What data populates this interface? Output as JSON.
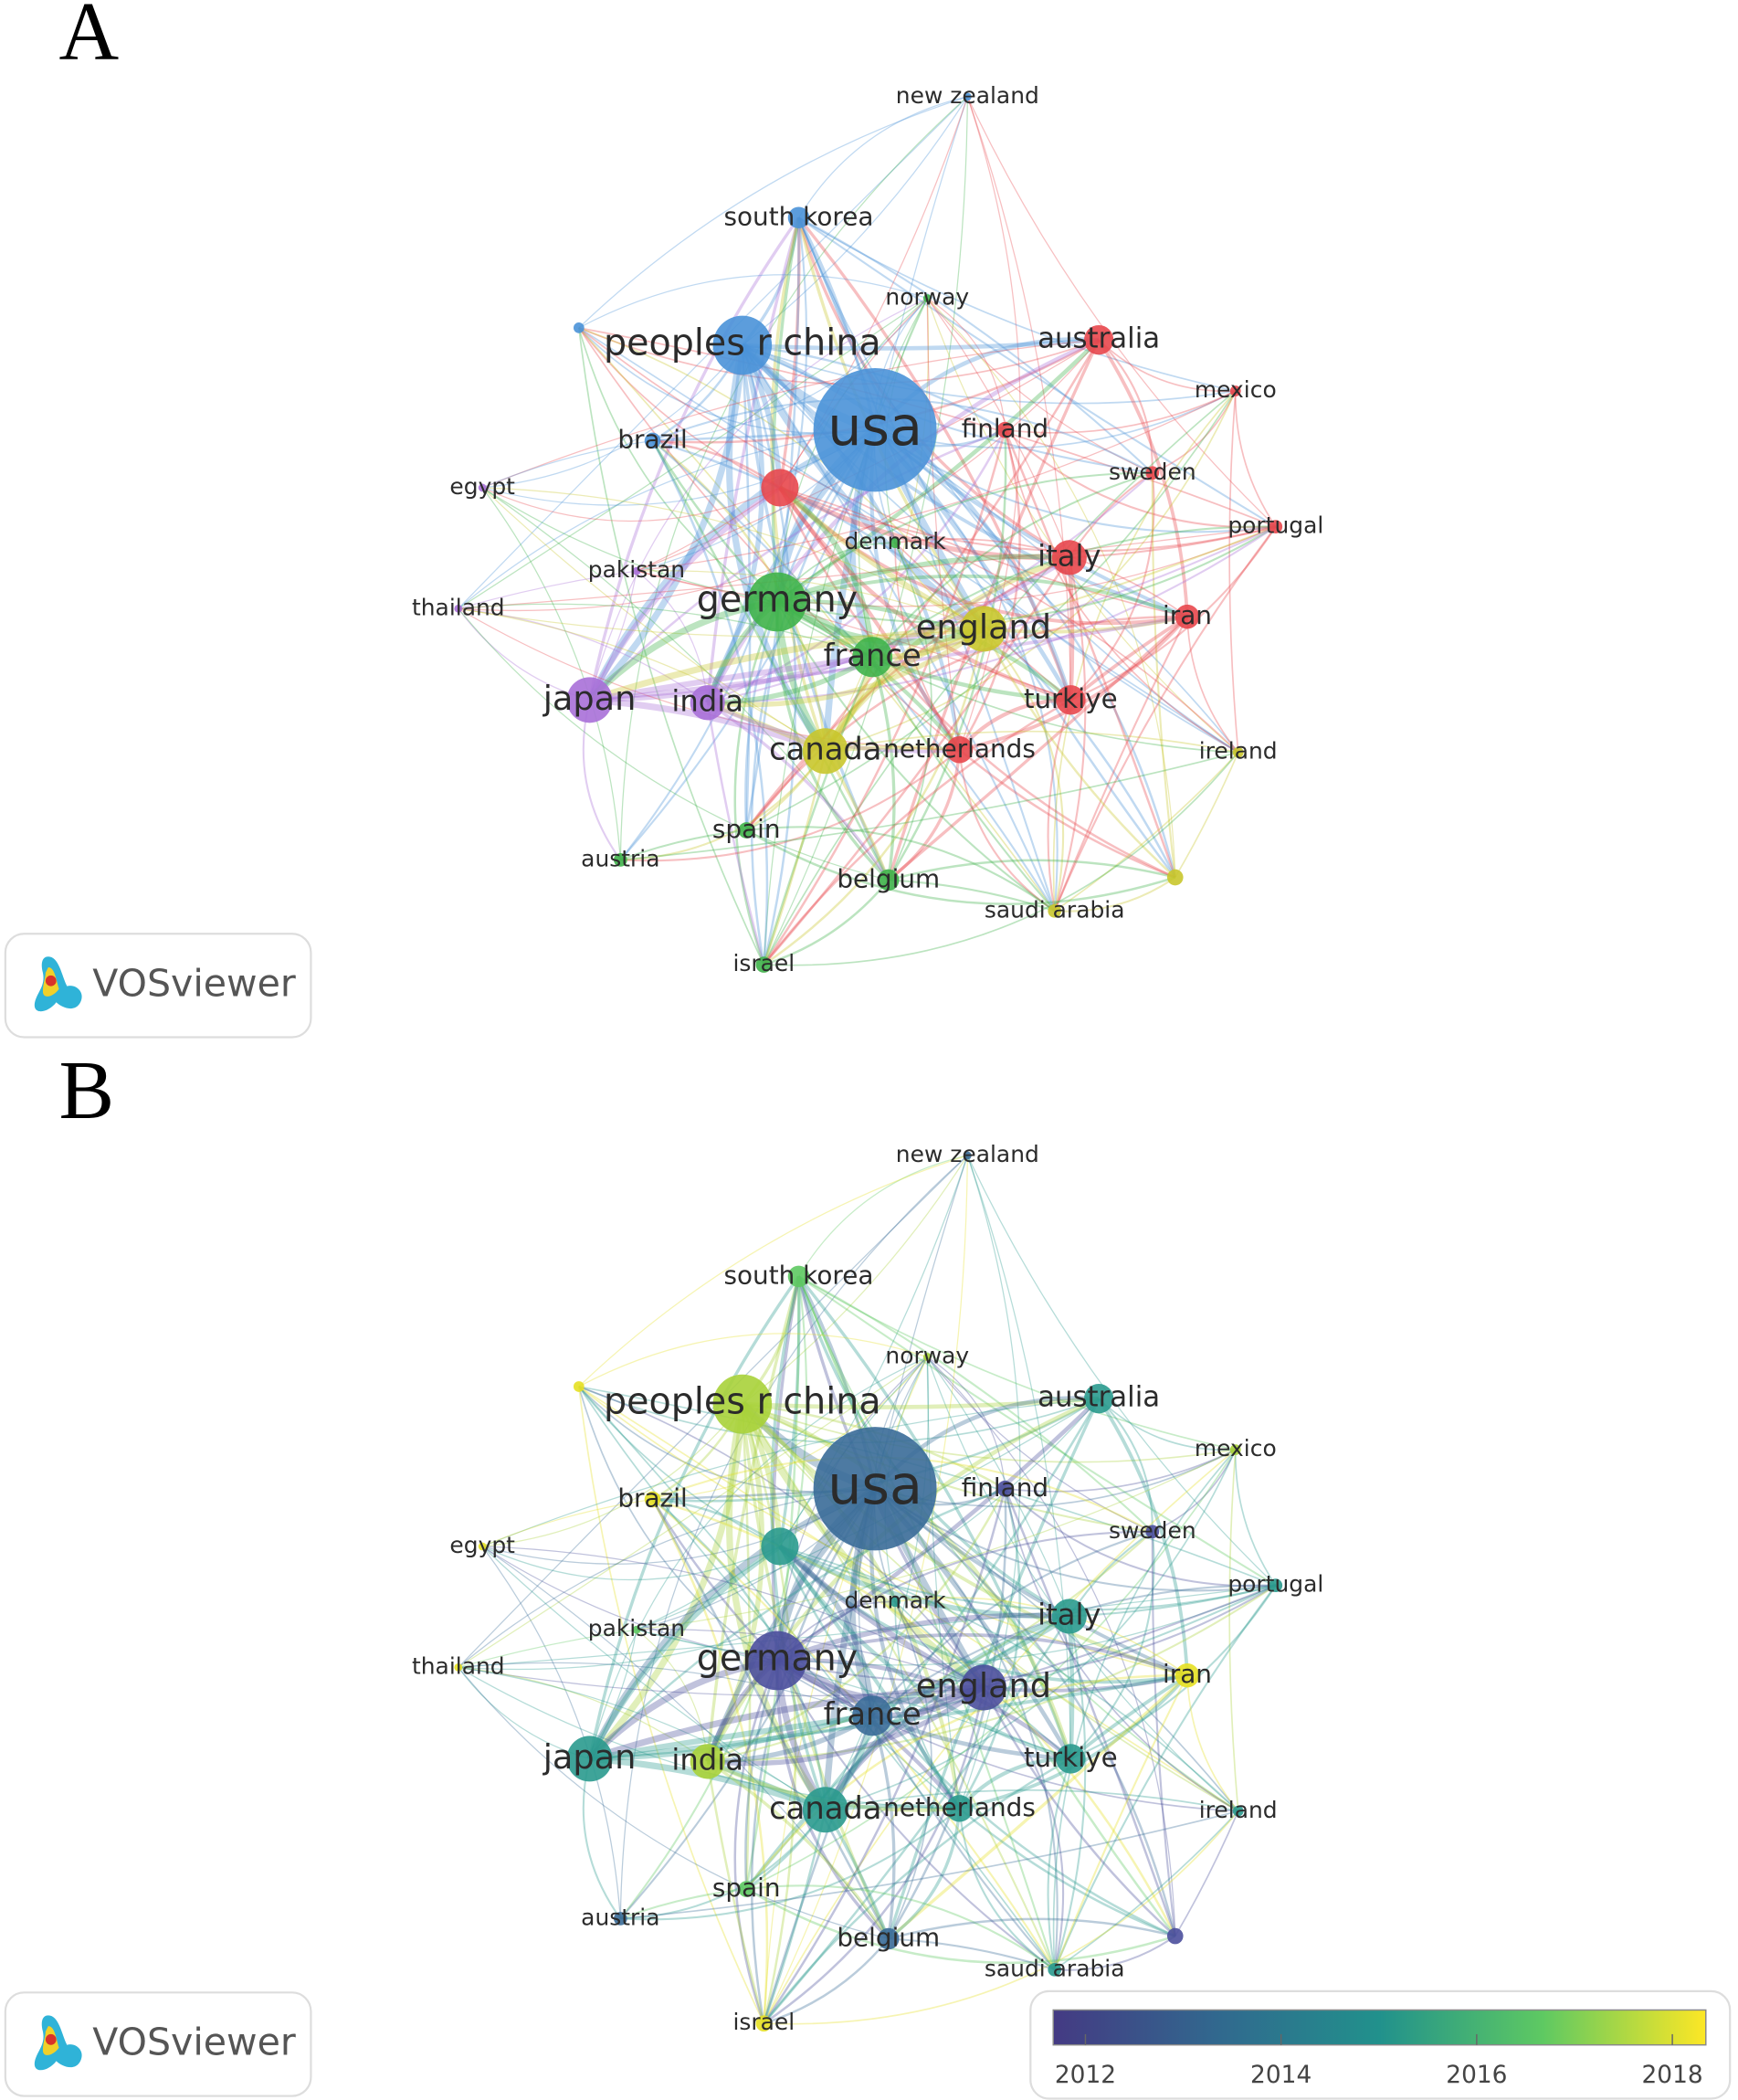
{
  "panels": [
    {
      "label": "A",
      "logo": "VOSviewer",
      "nodes": [
        "new zealand",
        "south korea",
        "norway",
        "peoples r china",
        "australia",
        "usa",
        "mexico",
        "finland",
        "brazil",
        "sweden",
        "egypt",
        "portugal",
        "denmark",
        "italy",
        "pakistan",
        "thailand",
        "germany",
        "iran",
        "england",
        "france",
        "japan",
        "india",
        "turkiye",
        "canada",
        "netherlands",
        "ireland",
        "spain",
        "austria",
        "belgium",
        "saudi arabia",
        "israel"
      ]
    },
    {
      "label": "B",
      "logo": "VOSviewer",
      "nodes": [
        "new zealand",
        "south korea",
        "norway",
        "peoples r china",
        "australia",
        "usa",
        "mexico",
        "finland",
        "brazil",
        "sweden",
        "egypt",
        "portugal",
        "denmark",
        "italy",
        "pakistan",
        "thailand",
        "germany",
        "iran",
        "england",
        "france",
        "japan",
        "india",
        "turkiye",
        "canada",
        "netherlands",
        "ireland",
        "spain",
        "austria",
        "belgium",
        "saudi arabia",
        "israel"
      ],
      "colorbar": {
        "ticks": [
          2012,
          2014,
          2016,
          2018
        ]
      }
    }
  ]
}
